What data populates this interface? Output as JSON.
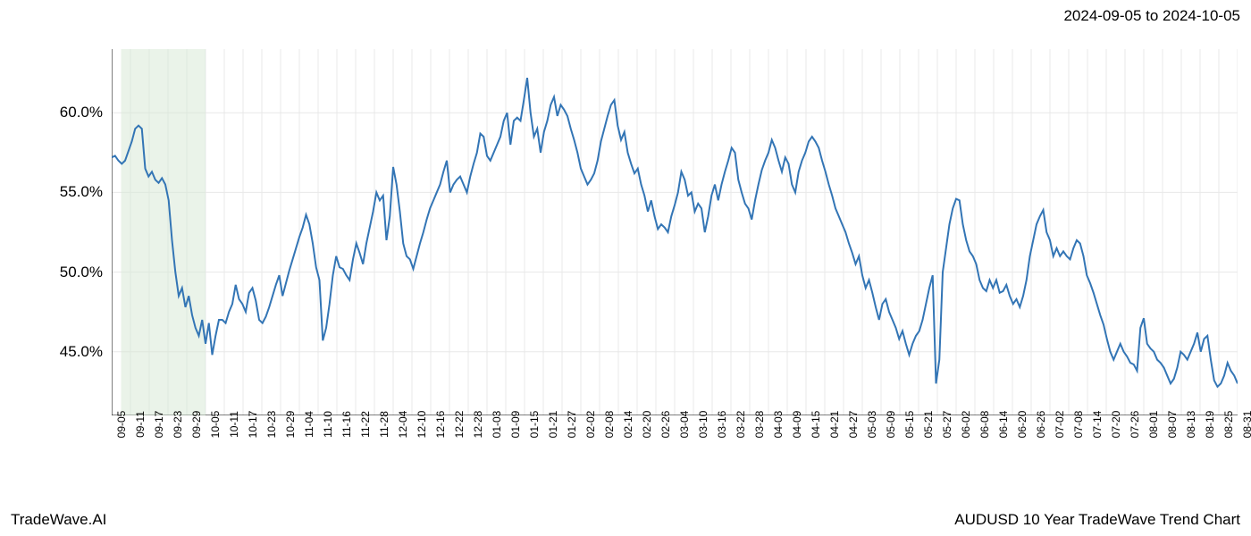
{
  "date_range": "2024-09-05 to 2024-10-05",
  "brand": "TradeWave.AI",
  "title": "AUDUSD 10 Year TradeWave Trend Chart",
  "chart": {
    "type": "line",
    "line_color": "#3375b5",
    "line_width": 2,
    "background_color": "#ffffff",
    "grid_color": "#e8e8e8",
    "axis_color": "#000000",
    "highlight_fill": "#d5e8d4",
    "highlight_opacity": 0.5,
    "highlight_start_index": 3,
    "highlight_end_index": 14,
    "ylim": [
      41,
      64
    ],
    "y_ticks": [
      45.0,
      50.0,
      55.0,
      60.0
    ],
    "y_tick_labels": [
      "45.0%",
      "50.0%",
      "55.0%",
      "60.0%"
    ],
    "x_labels": [
      "09-05",
      "09-11",
      "09-17",
      "09-23",
      "09-29",
      "10-05",
      "10-11",
      "10-17",
      "10-23",
      "10-29",
      "11-04",
      "11-10",
      "11-16",
      "11-22",
      "11-28",
      "12-04",
      "12-10",
      "12-16",
      "12-22",
      "12-28",
      "01-03",
      "01-09",
      "01-15",
      "01-21",
      "01-27",
      "02-02",
      "02-08",
      "02-14",
      "02-20",
      "02-26",
      "03-04",
      "03-10",
      "03-16",
      "03-22",
      "03-28",
      "04-03",
      "04-09",
      "04-15",
      "04-21",
      "04-27",
      "05-03",
      "05-09",
      "05-15",
      "05-21",
      "05-27",
      "06-02",
      "06-08",
      "06-14",
      "06-20",
      "06-26",
      "07-02",
      "07-08",
      "07-14",
      "07-20",
      "07-26",
      "08-01",
      "08-07",
      "08-13",
      "08-19",
      "08-25",
      "08-31"
    ],
    "data": [
      57.2,
      57.3,
      57.0,
      56.8,
      57.0,
      57.6,
      58.2,
      59.0,
      59.2,
      59.0,
      56.5,
      56.0,
      56.3,
      55.8,
      55.6,
      55.9,
      55.5,
      54.5,
      52.0,
      50.0,
      48.5,
      49.0,
      47.8,
      48.5,
      47.3,
      46.5,
      46.0,
      47.0,
      45.5,
      46.8,
      44.8,
      46.0,
      47.0,
      47.0,
      46.8,
      47.5,
      48.0,
      49.2,
      48.3,
      48.0,
      47.5,
      48.7,
      49.0,
      48.2,
      47.0,
      46.8,
      47.2,
      47.8,
      48.5,
      49.2,
      49.8,
      48.5,
      49.3,
      50.1,
      50.8,
      51.5,
      52.2,
      52.8,
      53.6,
      53.0,
      51.8,
      50.3,
      49.5,
      45.7,
      46.5,
      48.0,
      49.8,
      51.0,
      50.3,
      50.2,
      49.8,
      49.5,
      50.8,
      51.8,
      51.2,
      50.5,
      51.8,
      52.8,
      53.8,
      55.0,
      54.5,
      54.8,
      52.0,
      53.5,
      56.6,
      55.5,
      53.8,
      51.8,
      51.0,
      50.8,
      50.2,
      51.0,
      51.8,
      52.5,
      53.3,
      54.0,
      54.5,
      55.0,
      55.5,
      56.3,
      57.0,
      55.0,
      55.5,
      55.8,
      56.0,
      55.5,
      55.0,
      56.0,
      56.8,
      57.5,
      58.7,
      58.5,
      57.3,
      57.0,
      57.5,
      58.0,
      58.5,
      59.5,
      60.0,
      58.0,
      59.5,
      59.7,
      59.5,
      60.8,
      62.2,
      60.0,
      58.5,
      59.0,
      57.5,
      58.8,
      59.5,
      60.5,
      61.0,
      59.8,
      60.5,
      60.2,
      59.8,
      59.0,
      58.3,
      57.5,
      56.5,
      56.0,
      55.5,
      55.8,
      56.2,
      57.0,
      58.2,
      59.0,
      59.8,
      60.5,
      60.8,
      59.2,
      58.3,
      58.8,
      57.5,
      56.8,
      56.2,
      56.5,
      55.5,
      54.8,
      53.8,
      54.5,
      53.5,
      52.7,
      53.0,
      52.8,
      52.5,
      53.5,
      54.2,
      55.0,
      56.3,
      55.8,
      54.8,
      55.0,
      53.8,
      54.3,
      54.0,
      52.5,
      53.5,
      54.8,
      55.5,
      54.5,
      55.5,
      56.3,
      57.0,
      57.8,
      57.5,
      55.8,
      55.0,
      54.3,
      54.0,
      53.3,
      54.5,
      55.5,
      56.4,
      57.0,
      57.5,
      58.3,
      57.8,
      57.0,
      56.3,
      57.2,
      56.8,
      55.5,
      55.0,
      56.3,
      57.0,
      57.5,
      58.2,
      58.5,
      58.2,
      57.8,
      57.0,
      56.3,
      55.5,
      54.8,
      54.0,
      53.5,
      53.0,
      52.5,
      51.8,
      51.2,
      50.5,
      51.0,
      49.8,
      49.0,
      49.5,
      48.7,
      47.8,
      47.0,
      48.0,
      48.3,
      47.5,
      47.0,
      46.5,
      45.8,
      46.3,
      45.5,
      44.8,
      45.5,
      46.0,
      46.3,
      47.0,
      48.0,
      49.0,
      49.8,
      43.0,
      44.5,
      50.0,
      51.5,
      53.0,
      54.0,
      54.6,
      54.5,
      53.0,
      52.0,
      51.3,
      51.0,
      50.5,
      49.5,
      49.0,
      48.8,
      49.5,
      49.0,
      49.5,
      48.7,
      48.8,
      49.2,
      48.5,
      48.0,
      48.3,
      47.8,
      48.5,
      49.5,
      51.0,
      52.0,
      53.0,
      53.5,
      53.9,
      52.5,
      52.0,
      51.0,
      51.5,
      51.0,
      51.3,
      51.0,
      50.8,
      51.5,
      52.0,
      51.8,
      51.0,
      49.8,
      49.3,
      48.7,
      48.0,
      47.3,
      46.7,
      45.8,
      45.0,
      44.5,
      45.0,
      45.5,
      45.0,
      44.7,
      44.3,
      44.2,
      43.8,
      46.5,
      47.1,
      45.5,
      45.2,
      45.0,
      44.5,
      44.3,
      44.0,
      43.5,
      43.0,
      43.3,
      44.0,
      45.0,
      44.8,
      44.5,
      45.0,
      45.5,
      46.2,
      45.0,
      45.8,
      46.0,
      44.5,
      43.2,
      42.8,
      43.0,
      43.5,
      44.3,
      43.8,
      43.5,
      43.0
    ]
  }
}
